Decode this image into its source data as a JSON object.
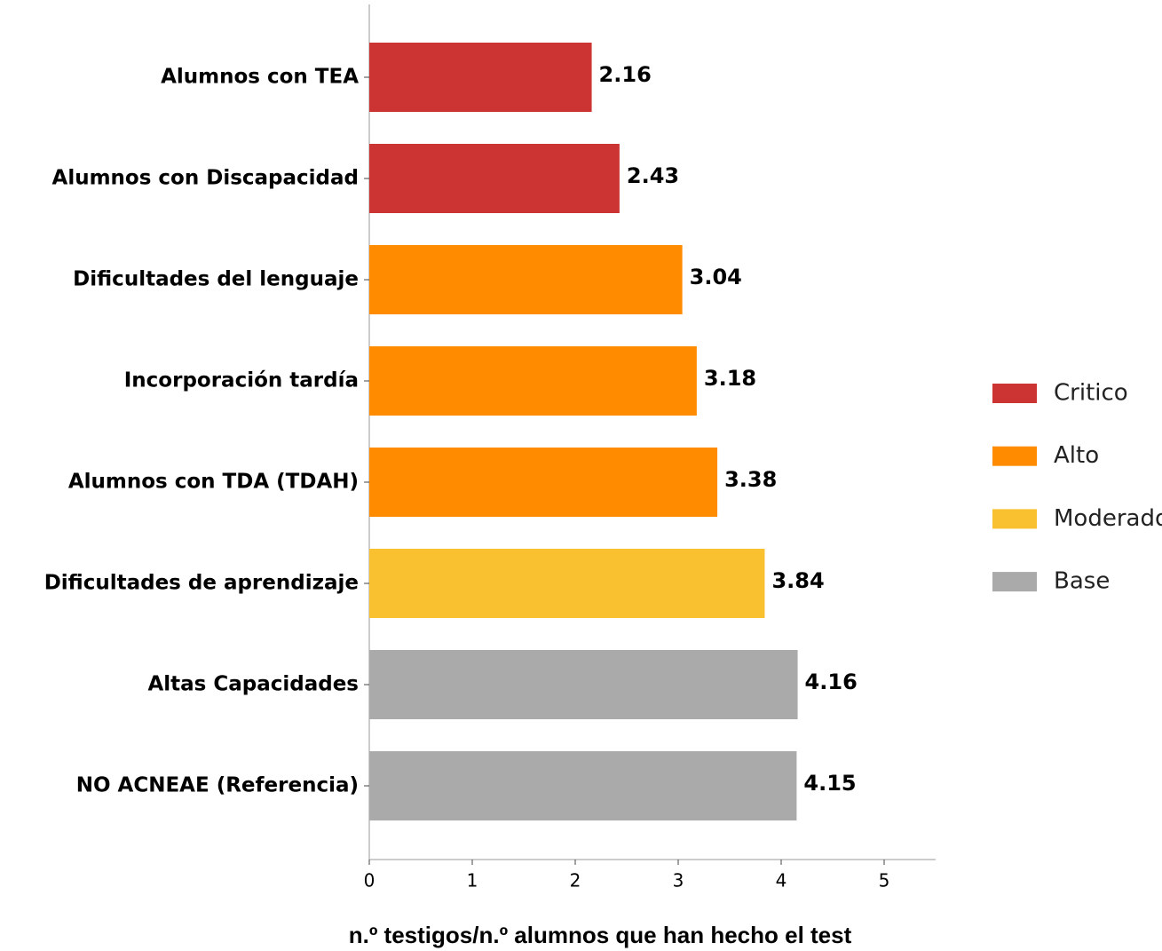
{
  "chart_data": {
    "type": "barh",
    "xlabel": "n.º testigos/n.º alumnos que han hecho el test",
    "categories": [
      "Alumnos con TEA",
      "Alumnos con Discapacidad",
      "Dificultades del lenguaje",
      "Incorporación tardía",
      "Alumnos con TDA (TDAH)",
      "Dificultades de aprendizaje",
      "Altas Capacidades",
      "NO ACNEAE (Referencia)"
    ],
    "values": [
      2.16,
      2.43,
      3.04,
      3.18,
      3.38,
      3.84,
      4.16,
      4.15
    ],
    "colors": [
      "#cc3333",
      "#cc3333",
      "#ff8c00",
      "#ff8c00",
      "#ff8c00",
      "#f9c02f",
      "#aaaaaa",
      "#aaaaaa"
    ],
    "legend": [
      {
        "name": "Critico",
        "color": "#cc3333"
      },
      {
        "name": "Alto",
        "color": "#ff8c00"
      },
      {
        "name": "Moderado",
        "color": "#f9c02f"
      },
      {
        "name": "Base",
        "color": "#aaaaaa"
      }
    ],
    "xlim": [
      0,
      5.5
    ],
    "xticks": [
      0,
      1,
      2,
      3,
      4,
      5
    ]
  }
}
